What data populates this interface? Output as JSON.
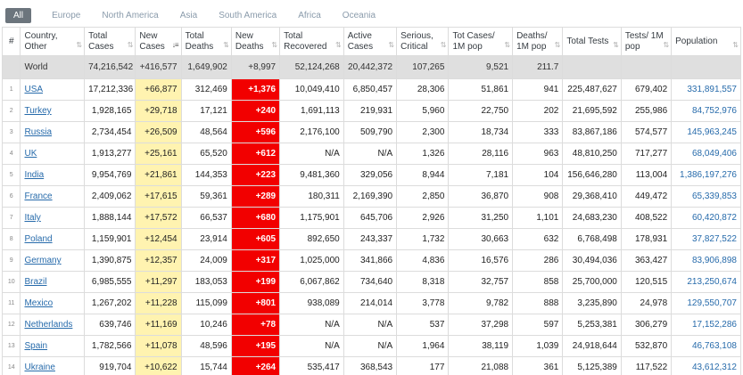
{
  "tabs": [
    "All",
    "Europe",
    "North America",
    "Asia",
    "South America",
    "Africa",
    "Oceania"
  ],
  "active_tab": "All",
  "columns": [
    "#",
    "Country, Other",
    "Total Cases",
    "New Cases",
    "Total Deaths",
    "New Deaths",
    "Total Recovered",
    "Active Cases",
    "Serious, Critical",
    "Tot Cases/ 1M pop",
    "Deaths/ 1M pop",
    "Total Tests",
    "Tests/ 1M pop",
    "Population"
  ],
  "sorted_column": "New Cases",
  "world": {
    "country": "World",
    "total_cases": "74,216,542",
    "new_cases": "+416,577",
    "total_deaths": "1,649,902",
    "new_deaths": "+8,997",
    "total_recovered": "52,124,268",
    "active_cases": "20,442,372",
    "serious": "107,265",
    "cases_1m": "9,521",
    "deaths_1m": "211.7",
    "total_tests": "",
    "tests_1m": "",
    "population": ""
  },
  "rows": [
    {
      "idx": "1",
      "country": "USA",
      "total_cases": "17,212,336",
      "new_cases": "+66,877",
      "total_deaths": "312,469",
      "new_deaths": "+1,376",
      "total_recovered": "10,049,410",
      "active_cases": "6,850,457",
      "serious": "28,306",
      "cases_1m": "51,861",
      "deaths_1m": "941",
      "total_tests": "225,487,627",
      "tests_1m": "679,402",
      "population": "331,891,557"
    },
    {
      "idx": "2",
      "country": "Turkey",
      "total_cases": "1,928,165",
      "new_cases": "+29,718",
      "total_deaths": "17,121",
      "new_deaths": "+240",
      "total_recovered": "1,691,113",
      "active_cases": "219,931",
      "serious": "5,960",
      "cases_1m": "22,750",
      "deaths_1m": "202",
      "total_tests": "21,695,592",
      "tests_1m": "255,986",
      "population": "84,752,976"
    },
    {
      "idx": "3",
      "country": "Russia",
      "total_cases": "2,734,454",
      "new_cases": "+26,509",
      "total_deaths": "48,564",
      "new_deaths": "+596",
      "total_recovered": "2,176,100",
      "active_cases": "509,790",
      "serious": "2,300",
      "cases_1m": "18,734",
      "deaths_1m": "333",
      "total_tests": "83,867,186",
      "tests_1m": "574,577",
      "population": "145,963,245"
    },
    {
      "idx": "4",
      "country": "UK",
      "total_cases": "1,913,277",
      "new_cases": "+25,161",
      "total_deaths": "65,520",
      "new_deaths": "+612",
      "total_recovered": "N/A",
      "active_cases": "N/A",
      "serious": "1,326",
      "cases_1m": "28,116",
      "deaths_1m": "963",
      "total_tests": "48,810,250",
      "tests_1m": "717,277",
      "population": "68,049,406"
    },
    {
      "idx": "5",
      "country": "India",
      "total_cases": "9,954,769",
      "new_cases": "+21,861",
      "total_deaths": "144,353",
      "new_deaths": "+223",
      "total_recovered": "9,481,360",
      "active_cases": "329,056",
      "serious": "8,944",
      "cases_1m": "7,181",
      "deaths_1m": "104",
      "total_tests": "156,646,280",
      "tests_1m": "113,004",
      "population": "1,386,197,276"
    },
    {
      "idx": "6",
      "country": "France",
      "total_cases": "2,409,062",
      "new_cases": "+17,615",
      "total_deaths": "59,361",
      "new_deaths": "+289",
      "total_recovered": "180,311",
      "active_cases": "2,169,390",
      "serious": "2,850",
      "cases_1m": "36,870",
      "deaths_1m": "908",
      "total_tests": "29,368,410",
      "tests_1m": "449,472",
      "population": "65,339,853"
    },
    {
      "idx": "7",
      "country": "Italy",
      "total_cases": "1,888,144",
      "new_cases": "+17,572",
      "total_deaths": "66,537",
      "new_deaths": "+680",
      "total_recovered": "1,175,901",
      "active_cases": "645,706",
      "serious": "2,926",
      "cases_1m": "31,250",
      "deaths_1m": "1,101",
      "total_tests": "24,683,230",
      "tests_1m": "408,522",
      "population": "60,420,872"
    },
    {
      "idx": "8",
      "country": "Poland",
      "total_cases": "1,159,901",
      "new_cases": "+12,454",
      "total_deaths": "23,914",
      "new_deaths": "+605",
      "total_recovered": "892,650",
      "active_cases": "243,337",
      "serious": "1,732",
      "cases_1m": "30,663",
      "deaths_1m": "632",
      "total_tests": "6,768,498",
      "tests_1m": "178,931",
      "population": "37,827,522"
    },
    {
      "idx": "9",
      "country": "Germany",
      "total_cases": "1,390,875",
      "new_cases": "+12,357",
      "total_deaths": "24,009",
      "new_deaths": "+317",
      "total_recovered": "1,025,000",
      "active_cases": "341,866",
      "serious": "4,836",
      "cases_1m": "16,576",
      "deaths_1m": "286",
      "total_tests": "30,494,036",
      "tests_1m": "363,427",
      "population": "83,906,898"
    },
    {
      "idx": "10",
      "country": "Brazil",
      "total_cases": "6,985,555",
      "new_cases": "+11,297",
      "total_deaths": "183,053",
      "new_deaths": "+199",
      "total_recovered": "6,067,862",
      "active_cases": "734,640",
      "serious": "8,318",
      "cases_1m": "32,757",
      "deaths_1m": "858",
      "total_tests": "25,700,000",
      "tests_1m": "120,515",
      "population": "213,250,674"
    },
    {
      "idx": "11",
      "country": "Mexico",
      "total_cases": "1,267,202",
      "new_cases": "+11,228",
      "total_deaths": "115,099",
      "new_deaths": "+801",
      "total_recovered": "938,089",
      "active_cases": "214,014",
      "serious": "3,778",
      "cases_1m": "9,782",
      "deaths_1m": "888",
      "total_tests": "3,235,890",
      "tests_1m": "24,978",
      "population": "129,550,707"
    },
    {
      "idx": "12",
      "country": "Netherlands",
      "total_cases": "639,746",
      "new_cases": "+11,169",
      "total_deaths": "10,246",
      "new_deaths": "+78",
      "total_recovered": "N/A",
      "active_cases": "N/A",
      "serious": "537",
      "cases_1m": "37,298",
      "deaths_1m": "597",
      "total_tests": "5,253,381",
      "tests_1m": "306,279",
      "population": "17,152,286"
    },
    {
      "idx": "13",
      "country": "Spain",
      "total_cases": "1,782,566",
      "new_cases": "+11,078",
      "total_deaths": "48,596",
      "new_deaths": "+195",
      "total_recovered": "N/A",
      "active_cases": "N/A",
      "serious": "1,964",
      "cases_1m": "38,119",
      "deaths_1m": "1,039",
      "total_tests": "24,918,644",
      "tests_1m": "532,870",
      "population": "46,763,108"
    },
    {
      "idx": "14",
      "country": "Ukraine",
      "total_cases": "919,704",
      "new_cases": "+10,622",
      "total_deaths": "15,744",
      "new_deaths": "+264",
      "total_recovered": "535,417",
      "active_cases": "368,543",
      "serious": "177",
      "cases_1m": "21,088",
      "deaths_1m": "361",
      "total_tests": "5,125,389",
      "tests_1m": "117,522",
      "population": "43,612,312"
    }
  ],
  "colors": {
    "new_cases_bg": "#fff3b0",
    "new_deaths_bg": "#f20000",
    "link": "#276bab",
    "world_row_bg": "#dfdfdf",
    "active_tab_bg": "#6c757d"
  }
}
